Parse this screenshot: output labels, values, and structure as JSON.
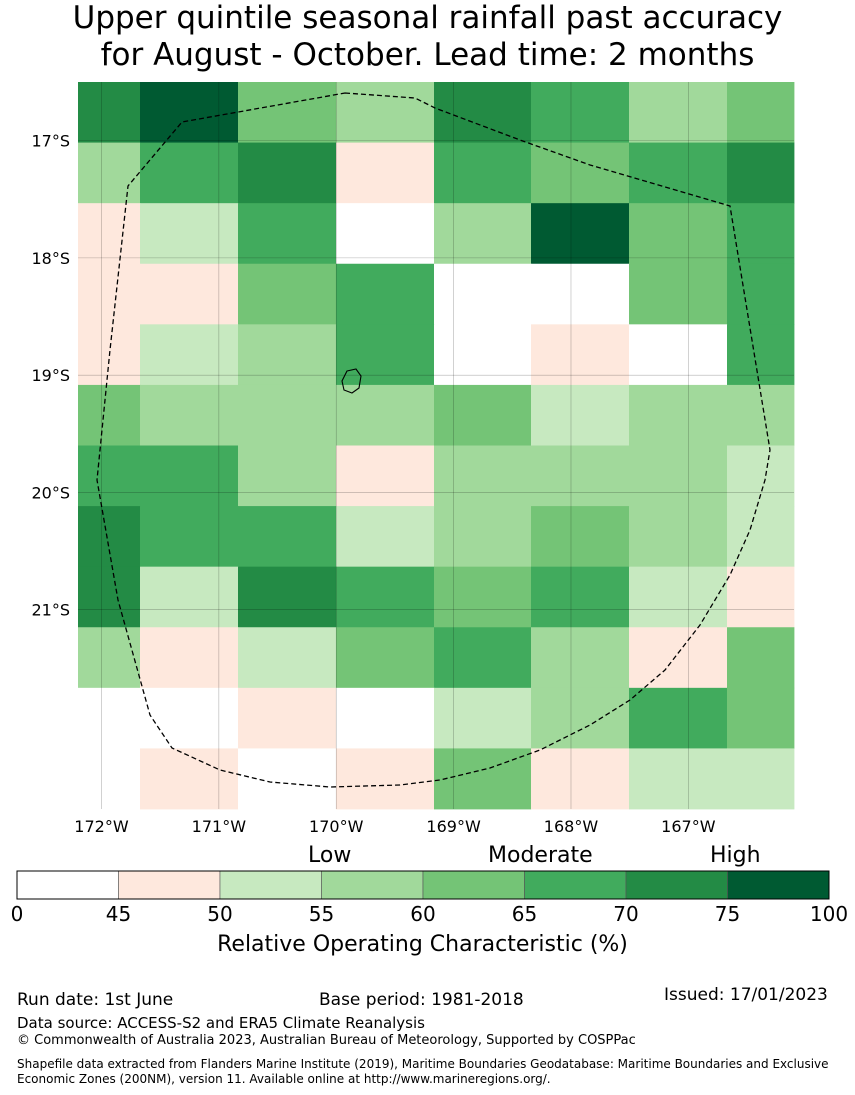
{
  "title": {
    "line1": "Upper quintile seasonal rainfall past accuracy",
    "line2": "for August - October. Lead time: 2 months"
  },
  "map": {
    "lat_ticks": [
      "17°S",
      "18°S",
      "19°S",
      "20°S",
      "21°S"
    ],
    "lon_ticks": [
      "172°W",
      "171°W",
      "170°W",
      "169°W",
      "168°W",
      "167°W"
    ],
    "grid_extent": {
      "lon": [
        -172.2,
        -166.1
      ],
      "lat": [
        -16.5,
        -22.7
      ]
    },
    "cell_size_deg": 0.5556,
    "roc_class_grid": [
      [
        6,
        7,
        4,
        3,
        6,
        5,
        3,
        4
      ],
      [
        3,
        5,
        6,
        1,
        5,
        4,
        5,
        6
      ],
      [
        1,
        2,
        5,
        0,
        3,
        7,
        4,
        5
      ],
      [
        1,
        1,
        4,
        5,
        0,
        0,
        4,
        5
      ],
      [
        1,
        2,
        3,
        5,
        0,
        1,
        0,
        5
      ],
      [
        4,
        3,
        3,
        3,
        4,
        2,
        3,
        3
      ],
      [
        5,
        5,
        3,
        1,
        3,
        3,
        3,
        2
      ],
      [
        6,
        5,
        5,
        2,
        3,
        4,
        3,
        2
      ],
      [
        6,
        2,
        6,
        5,
        4,
        5,
        2,
        1
      ],
      [
        3,
        1,
        2,
        4,
        5,
        3,
        1,
        4
      ],
      [
        0,
        0,
        1,
        0,
        2,
        3,
        5,
        4
      ],
      [
        0,
        1,
        0,
        1,
        4,
        1,
        2,
        2
      ]
    ],
    "eez_boundary_color": "#000000",
    "island": "Niue"
  },
  "colorbar": {
    "ticks": [
      "0",
      "45",
      "50",
      "55",
      "60",
      "65",
      "70",
      "75",
      "100"
    ],
    "colors": [
      "#ffffff",
      "#fee8dd",
      "#c7e9c0",
      "#a1d99b",
      "#74c476",
      "#41ab5d",
      "#238b45",
      "#005a32"
    ],
    "levels": {
      "low": "Low",
      "moderate": "Moderate",
      "high": "High"
    },
    "label": "Relative Operating Characteristic (%)"
  },
  "footer": {
    "run_date": "Run date: 1st June",
    "base_period": "Base period: 1981-2018",
    "issued": "Issued: 17/01/2023",
    "data_source": "Data source: ACCESS-S2 and ERA5 Climate Reanalysis",
    "copyright": "© Commonwealth of Australia 2023, Australian Bureau of Meteorology, Supported by COSPPac",
    "shapefile_line1": "Shapefile data extracted from Flanders Marine Institute (2019), Maritime Boundaries Geodatabase: Maritime Boundaries and Exclusive",
    "shapefile_line2": "Economic Zones (200NM), version 11. Available online at http://www.marineregions.org/."
  }
}
